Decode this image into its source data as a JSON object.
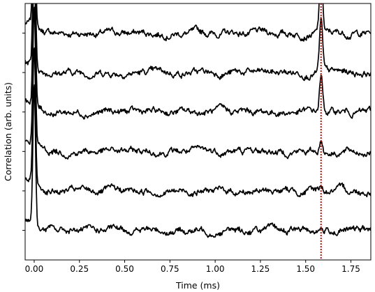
{
  "chart_data": {
    "type": "line",
    "title": "",
    "xlabel": "Time (ms)",
    "ylabel": "Correlation (arb. units)",
    "xlim": [
      -0.05,
      1.86
    ],
    "ylim": [
      -0.75,
      5.75
    ],
    "x_ticks": [
      0.0,
      0.25,
      0.5,
      0.75,
      1.0,
      1.25,
      1.5,
      1.75
    ],
    "x_tick_labels": [
      "0.00",
      "0.25",
      "0.50",
      "0.75",
      "1.00",
      "1.25",
      "1.50",
      "1.75"
    ],
    "y_ticks": [
      0,
      1,
      2,
      3,
      4,
      5
    ],
    "y_tick_labels": [
      "",
      "",
      "",
      "",
      "",
      ""
    ],
    "grid": false,
    "line_color": "#000000",
    "marker_line": {
      "x": 1.585,
      "color": "#dd0000",
      "style": "dotted"
    },
    "series": [
      {
        "offset": 5,
        "x": [
          0.0,
          0.05,
          0.25,
          0.5,
          0.75,
          1.0,
          1.25,
          1.5,
          1.585,
          1.65,
          1.85
        ],
        "values": [
          5.0,
          5.0,
          5.0,
          5.0,
          5.0,
          5.0,
          5.0,
          5.0,
          6.6,
          5.0,
          5.0
        ]
      },
      {
        "offset": 4,
        "x": [
          0.0,
          0.05,
          0.25,
          0.5,
          0.75,
          1.0,
          1.25,
          1.5,
          1.585,
          1.65,
          1.85
        ],
        "values": [
          4.0,
          4.0,
          4.0,
          4.0,
          4.0,
          4.0,
          4.0,
          4.0,
          5.3,
          4.0,
          4.0
        ]
      },
      {
        "offset": 3,
        "x": [
          0.0,
          0.05,
          0.25,
          0.5,
          0.75,
          1.0,
          1.25,
          1.5,
          1.585,
          1.65,
          1.85
        ],
        "values": [
          3.0,
          3.0,
          3.0,
          3.0,
          3.0,
          3.0,
          3.0,
          3.0,
          3.9,
          3.0,
          3.0
        ]
      },
      {
        "offset": 2,
        "x": [
          0.0,
          0.05,
          0.25,
          0.5,
          0.75,
          1.0,
          1.25,
          1.5,
          1.585,
          1.65,
          1.85
        ],
        "values": [
          2.0,
          2.0,
          2.0,
          2.0,
          2.0,
          2.0,
          2.0,
          2.0,
          2.3,
          2.0,
          2.0
        ]
      },
      {
        "offset": 1,
        "x": [
          0.0,
          0.05,
          0.25,
          0.5,
          0.75,
          1.0,
          1.25,
          1.5,
          1.585,
          1.65,
          1.85
        ],
        "values": [
          1.0,
          1.0,
          1.0,
          1.0,
          1.0,
          1.0,
          1.0,
          1.0,
          1.1,
          1.0,
          1.0
        ]
      },
      {
        "offset": 0,
        "x": [
          0.0,
          0.05,
          0.25,
          0.5,
          0.75,
          1.0,
          1.25,
          1.5,
          1.585,
          1.65,
          1.85
        ],
        "values": [
          0.0,
          0.0,
          0.0,
          0.0,
          0.0,
          0.0,
          0.0,
          0.0,
          0.05,
          0.0,
          0.0
        ]
      }
    ]
  }
}
